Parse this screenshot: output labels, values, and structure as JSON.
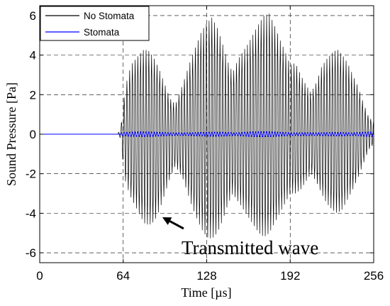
{
  "chart_data": {
    "type": "line",
    "title": "",
    "xlabel": "Time [µs]",
    "ylabel": "Sound Pressure [Pa]",
    "xlim": [
      0,
      256
    ],
    "ylim": [
      -6.5,
      6.5
    ],
    "x_ticks": [
      0,
      64,
      128,
      192,
      256
    ],
    "y_ticks": [
      -6,
      -4,
      -2,
      0,
      2,
      4,
      6
    ],
    "grid": "dashed",
    "legend_position": "top-left",
    "signal_start": 60,
    "carrier_period_us": 2.1,
    "series": [
      {
        "name": "No Stomata",
        "color": "#000000",
        "envelope": {
          "t": [
            0,
            59,
            62,
            64,
            66,
            70,
            76,
            80,
            84,
            88,
            92,
            96,
            100,
            104,
            110,
            116,
            120,
            124,
            128,
            132,
            136,
            140,
            144,
            148,
            152,
            156,
            160,
            164,
            168,
            172,
            176,
            180,
            184,
            188,
            192,
            196,
            200,
            204,
            208,
            212,
            216,
            220,
            224,
            228,
            232,
            236,
            240,
            244,
            248,
            252,
            256
          ],
          "pos": [
            0,
            0,
            0.2,
            1.5,
            2.5,
            3.5,
            4.0,
            4.3,
            4.2,
            3.8,
            3.2,
            2.5,
            1.8,
            1.5,
            2.6,
            3.8,
            4.5,
            5.2,
            5.6,
            5.9,
            5.4,
            4.6,
            3.7,
            3.1,
            3.8,
            4.2,
            4.6,
            5.1,
            5.6,
            6.0,
            6.1,
            5.5,
            4.8,
            4.2,
            3.5,
            3.6,
            3.0,
            2.5,
            2.1,
            2.6,
            3.4,
            3.8,
            4.1,
            4.3,
            4.0,
            3.6,
            3.0,
            2.4,
            1.6,
            0.9,
            0.6
          ],
          "neg": [
            0,
            0,
            0.2,
            1.5,
            2.5,
            3.2,
            4.0,
            4.5,
            4.6,
            4.4,
            3.8,
            3.0,
            2.2,
            1.6,
            2.3,
            3.5,
            4.2,
            4.8,
            5.2,
            5.3,
            5.0,
            4.4,
            3.6,
            3.0,
            3.4,
            3.8,
            4.2,
            4.6,
            5.0,
            5.2,
            5.0,
            4.5,
            4.0,
            3.5,
            3.0,
            3.0,
            2.8,
            2.4,
            2.0,
            2.4,
            3.0,
            3.5,
            3.8,
            4.0,
            3.8,
            3.3,
            2.8,
            2.2,
            1.5,
            0.8,
            0.5
          ]
        }
      },
      {
        "name": "Stomata",
        "color": "#0000ff",
        "amplitude": 0.15
      }
    ],
    "annotations": [
      {
        "text": "Transmitted wave",
        "arrow_to_x": 94,
        "arrow_to_y": -4.2
      }
    ]
  }
}
